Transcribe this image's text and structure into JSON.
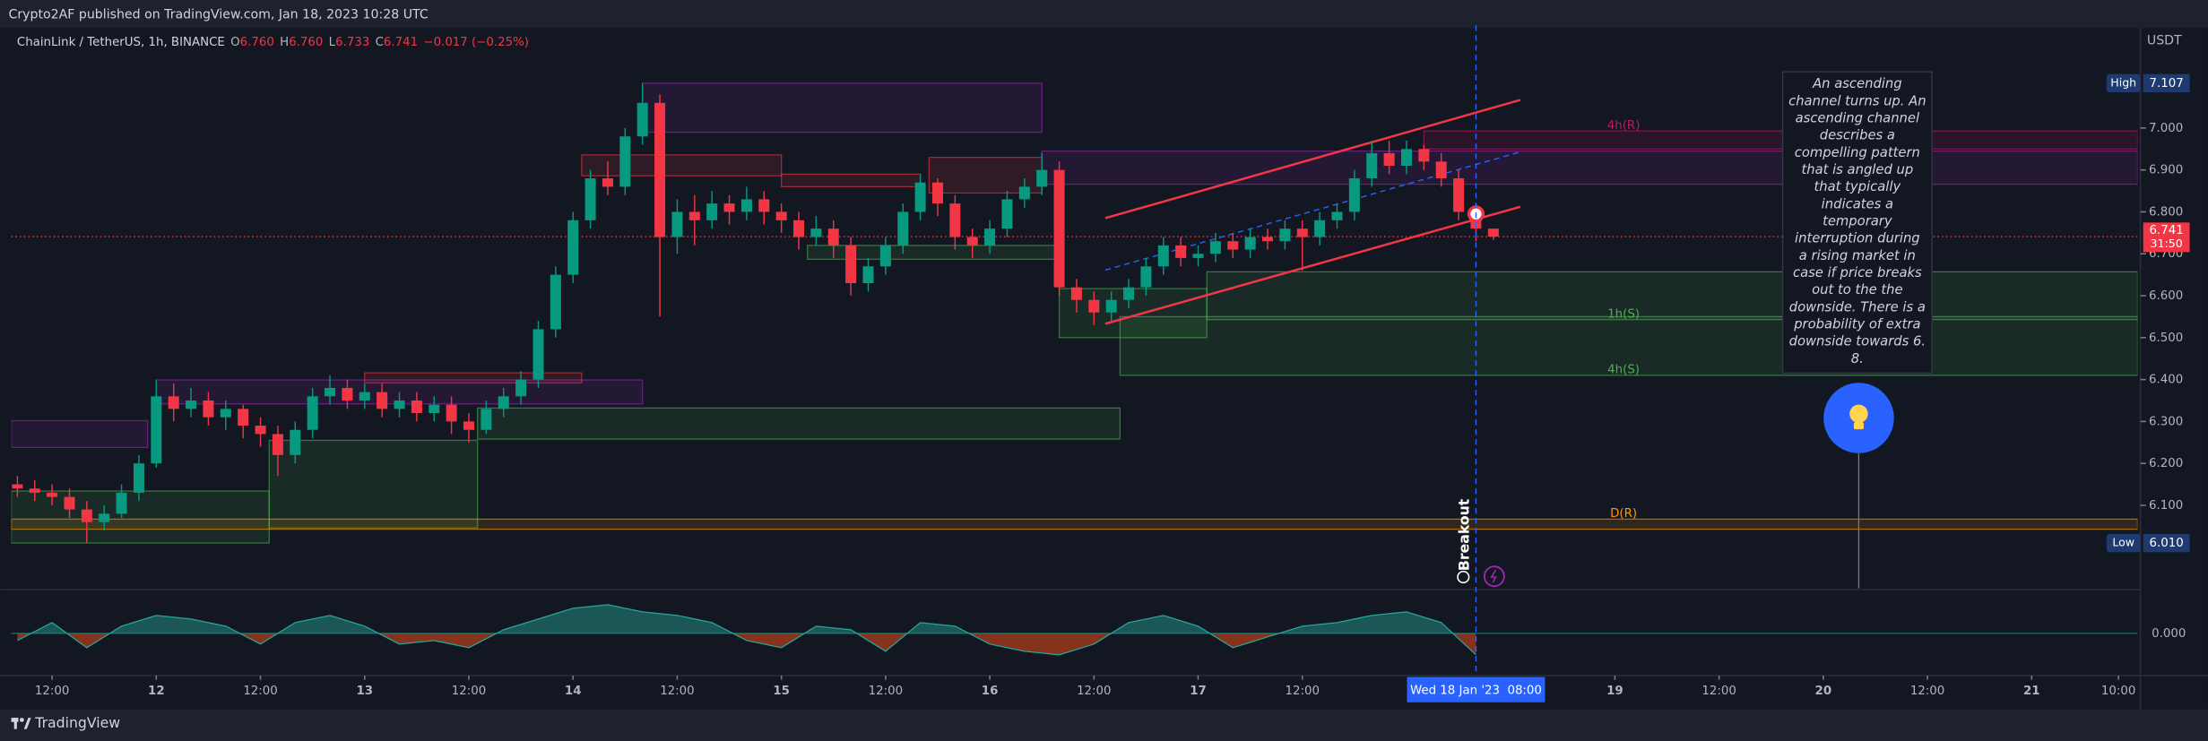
{
  "page": {
    "publisher": "Crypto2AF published on TradingView.com, Jan 18, 2023 10:28 UTC",
    "brand": "TradingView"
  },
  "chart_data": [
    {
      "type": "candlestick",
      "symbol": "ChainLink / TetherUS, 1h, BINANCE",
      "ohlc_labels": [
        {
          "key": "O",
          "value": "6.760"
        },
        {
          "key": "H",
          "value": "6.760"
        },
        {
          "key": "L",
          "value": "6.733"
        },
        {
          "key": "C",
          "value": "6.741"
        }
      ],
      "change": "−0.017 (−0.25%)",
      "y_unit": "USDT",
      "up_color": "#089981",
      "down_color": "#f23645",
      "x": [
        -16,
        -14,
        -12,
        -10,
        -8,
        -6,
        -4,
        -2,
        0,
        2,
        4,
        6,
        8,
        10,
        12,
        14,
        16,
        18,
        20,
        22,
        24,
        26,
        28,
        30,
        32,
        34,
        36,
        38,
        40,
        42,
        44,
        46,
        48,
        50,
        52,
        54,
        56,
        58,
        60,
        62,
        64,
        66,
        68,
        70,
        72,
        74,
        76,
        78,
        80,
        82,
        84,
        86,
        88,
        90,
        92,
        94,
        96,
        98,
        100,
        102,
        104,
        106,
        108,
        110,
        112,
        114,
        116,
        118,
        120,
        122,
        124,
        126,
        128,
        130,
        132,
        134,
        136,
        138,
        140,
        142,
        144,
        146,
        148,
        150,
        152,
        154
      ],
      "open": [
        6.15,
        6.14,
        6.13,
        6.12,
        6.09,
        6.06,
        6.08,
        6.13,
        6.2,
        6.36,
        6.33,
        6.35,
        6.31,
        6.33,
        6.29,
        6.27,
        6.22,
        6.28,
        6.36,
        6.38,
        6.35,
        6.37,
        6.33,
        6.35,
        6.32,
        6.34,
        6.3,
        6.28,
        6.33,
        6.36,
        6.4,
        6.52,
        6.65,
        6.78,
        6.88,
        6.86,
        6.98,
        7.06,
        6.74,
        6.8,
        6.78,
        6.82,
        6.8,
        6.83,
        6.8,
        6.78,
        6.74,
        6.76,
        6.72,
        6.63,
        6.67,
        6.72,
        6.8,
        6.87,
        6.82,
        6.74,
        6.72,
        6.76,
        6.83,
        6.86,
        6.9,
        6.62,
        6.59,
        6.56,
        6.59,
        6.62,
        6.67,
        6.72,
        6.69,
        6.7,
        6.73,
        6.71,
        6.74,
        6.73,
        6.76,
        6.74,
        6.78,
        6.8,
        6.88,
        6.94,
        6.91,
        6.95,
        6.92,
        6.88,
        6.8,
        6.76
      ],
      "high": [
        6.17,
        6.16,
        6.15,
        6.14,
        6.11,
        6.1,
        6.15,
        6.22,
        6.4,
        6.39,
        6.38,
        6.37,
        6.35,
        6.34,
        6.31,
        6.29,
        6.3,
        6.38,
        6.41,
        6.4,
        6.39,
        6.39,
        6.37,
        6.37,
        6.36,
        6.36,
        6.32,
        6.35,
        6.38,
        6.42,
        6.54,
        6.67,
        6.8,
        6.9,
        6.92,
        7.0,
        7.107,
        7.08,
        6.83,
        6.84,
        6.85,
        6.84,
        6.86,
        6.85,
        6.82,
        6.8,
        6.79,
        6.78,
        6.74,
        6.69,
        6.74,
        6.82,
        6.89,
        6.88,
        6.84,
        6.76,
        6.78,
        6.85,
        6.88,
        6.94,
        6.92,
        6.64,
        6.61,
        6.61,
        6.64,
        6.69,
        6.74,
        6.74,
        6.72,
        6.75,
        6.75,
        6.76,
        6.76,
        6.78,
        6.78,
        6.8,
        6.82,
        6.9,
        6.97,
        6.97,
        6.97,
        6.96,
        6.94,
        6.9,
        6.82,
        6.76
      ],
      "low": [
        6.12,
        6.11,
        6.1,
        6.07,
        6.01,
        6.04,
        6.07,
        6.11,
        6.19,
        6.3,
        6.31,
        6.29,
        6.28,
        6.26,
        6.24,
        6.17,
        6.2,
        6.26,
        6.34,
        6.33,
        6.33,
        6.31,
        6.31,
        6.3,
        6.3,
        6.27,
        6.25,
        6.27,
        6.31,
        6.34,
        6.38,
        6.5,
        6.63,
        6.76,
        6.84,
        6.84,
        6.96,
        6.55,
        6.7,
        6.72,
        6.76,
        6.77,
        6.78,
        6.77,
        6.75,
        6.71,
        6.72,
        6.69,
        6.6,
        6.61,
        6.65,
        6.7,
        6.78,
        6.79,
        6.71,
        6.69,
        6.7,
        6.74,
        6.81,
        6.84,
        6.6,
        6.56,
        6.53,
        6.54,
        6.57,
        6.6,
        6.65,
        6.67,
        6.67,
        6.68,
        6.69,
        6.69,
        6.71,
        6.71,
        6.66,
        6.72,
        6.76,
        6.78,
        6.86,
        6.89,
        6.89,
        6.9,
        6.86,
        6.78,
        6.73,
        6.733
      ],
      "close": [
        6.14,
        6.13,
        6.12,
        6.09,
        6.06,
        6.08,
        6.13,
        6.2,
        6.36,
        6.33,
        6.35,
        6.31,
        6.33,
        6.29,
        6.27,
        6.22,
        6.28,
        6.36,
        6.38,
        6.35,
        6.37,
        6.33,
        6.35,
        6.32,
        6.34,
        6.3,
        6.28,
        6.33,
        6.36,
        6.4,
        6.52,
        6.65,
        6.78,
        6.88,
        6.86,
        6.98,
        7.06,
        6.74,
        6.8,
        6.78,
        6.82,
        6.8,
        6.83,
        6.8,
        6.78,
        6.74,
        6.76,
        6.72,
        6.63,
        6.67,
        6.72,
        6.8,
        6.87,
        6.82,
        6.74,
        6.72,
        6.76,
        6.83,
        6.86,
        6.9,
        6.62,
        6.59,
        6.56,
        6.59,
        6.62,
        6.67,
        6.72,
        6.69,
        6.7,
        6.73,
        6.71,
        6.74,
        6.73,
        6.76,
        6.74,
        6.78,
        6.8,
        6.88,
        6.94,
        6.91,
        6.95,
        6.92,
        6.88,
        6.8,
        6.76,
        6.741
      ],
      "xlim": [
        -16.7,
        228.2
      ],
      "xticks": [
        {
          "value": -12,
          "label": "12:00"
        },
        {
          "value": 0,
          "label": "12"
        },
        {
          "value": 12,
          "label": "12:00"
        },
        {
          "value": 24,
          "label": "13"
        },
        {
          "value": 36,
          "label": "12:00"
        },
        {
          "value": 48,
          "label": "14"
        },
        {
          "value": 60,
          "label": "12:00"
        },
        {
          "value": 72,
          "label": "15"
        },
        {
          "value": 84,
          "label": "12:00"
        },
        {
          "value": 96,
          "label": "16"
        },
        {
          "value": 108,
          "label": "12:00"
        },
        {
          "value": 120,
          "label": "17"
        },
        {
          "value": 132,
          "label": "12:00"
        },
        {
          "value": 168,
          "label": "19"
        },
        {
          "value": 180,
          "label": "12:00"
        },
        {
          "value": 192,
          "label": "20"
        },
        {
          "value": 204,
          "label": "12:00"
        },
        {
          "value": 216,
          "label": "21"
        },
        {
          "value": 226,
          "label": "10:00"
        }
      ],
      "ylim": [
        5.902,
        7.245
      ],
      "yticks": [
        {
          "value": 6.1,
          "label": "6.100"
        },
        {
          "value": 6.2,
          "label": "6.200"
        },
        {
          "value": 6.3,
          "label": "6.300"
        },
        {
          "value": 6.4,
          "label": "6.400"
        },
        {
          "value": 6.5,
          "label": "6.500"
        },
        {
          "value": 6.6,
          "label": "6.600"
        },
        {
          "value": 6.7,
          "label": "6.700"
        },
        {
          "value": 6.8,
          "label": "6.800"
        },
        {
          "value": 6.9,
          "label": "6.900"
        },
        {
          "value": 7.0,
          "label": "7.000"
        }
      ],
      "markers": [
        {
          "name": "High",
          "value": 7.107,
          "label": "7.107"
        },
        {
          "name": "Low",
          "value": 6.01,
          "label": "6.010"
        }
      ],
      "last_price": {
        "value": 6.741,
        "label": "6.741",
        "countdown": "31:50"
      },
      "crosshair": {
        "x": 152,
        "label": "Wed 18 Jan '23  08:00"
      },
      "zones": [
        {
          "h": [
            56,
            102
          ],
          "p": [
            6.99,
            7.107
          ],
          "color": "#9c27b0"
        },
        {
          "h": [
            49,
            72
          ],
          "p": [
            6.886,
            6.936
          ],
          "color": "#f23645"
        },
        {
          "h": [
            72,
            88
          ],
          "p": [
            6.86,
            6.89
          ],
          "color": "#f23645"
        },
        {
          "h": [
            89,
            102
          ],
          "p": [
            6.845,
            6.93
          ],
          "color": "#f23645"
        },
        {
          "h": [
            102,
            228.2
          ],
          "p": [
            6.866,
            6.945
          ],
          "color": "#9c27b0"
        },
        {
          "h": [
            146,
            228.2
          ],
          "p": [
            6.95,
            6.993
          ],
          "color": "#c2185b",
          "label": "4h(R)"
        },
        {
          "h": [
            75,
            103.6
          ],
          "p": [
            6.687,
            6.72
          ],
          "color": "#4caf50"
        },
        {
          "h": [
            121,
            228.2
          ],
          "p": [
            6.543,
            6.657
          ],
          "color": "#4caf50",
          "label": "1h(S)"
        },
        {
          "h": [
            111,
            228.2
          ],
          "p": [
            6.41,
            6.55
          ],
          "color": "#4caf50",
          "label": "4h(S)"
        },
        {
          "h": [
            104,
            121
          ],
          "p": [
            6.5,
            6.617
          ],
          "color": "#4caf50"
        },
        {
          "h": [
            -16.7,
            -1
          ],
          "p": [
            6.238,
            6.302
          ],
          "color": "#9c27b0"
        },
        {
          "h": [
            0,
            56
          ],
          "p": [
            6.342,
            6.399
          ],
          "color": "#9c27b0"
        },
        {
          "h": [
            24,
            49
          ],
          "p": [
            6.392,
            6.416
          ],
          "color": "#f23645"
        },
        {
          "h": [
            37,
            111
          ],
          "p": [
            6.258,
            6.332
          ],
          "color": "#4caf50"
        },
        {
          "h": [
            13,
            37
          ],
          "p": [
            6.046,
            6.255
          ],
          "color": "#4caf50"
        },
        {
          "h": [
            -16.7,
            13
          ],
          "p": [
            6.01,
            6.134
          ],
          "color": "#4caf50"
        },
        {
          "h": [
            -16.7,
            228.2
          ],
          "p": [
            6.043,
            6.067
          ],
          "color": "#ff9800",
          "label": "D(R)"
        }
      ],
      "trendlines": [
        {
          "h": [
            109.3,
            157.1
          ],
          "p": [
            6.785,
            7.067
          ],
          "color": "#f23645",
          "dashed": false
        },
        {
          "h": [
            109.3,
            157.1
          ],
          "p": [
            6.533,
            6.812
          ],
          "color": "#f23645",
          "dashed": false
        },
        {
          "h": [
            109.3,
            157.1
          ],
          "p": [
            6.661,
            6.943
          ],
          "color": "#2962ff",
          "dashed": true
        }
      ],
      "signal": {
        "x": 152,
        "value": 6.795
      },
      "event_label": "Breakout",
      "annotation": [
        "An ascending",
        "channel turns up. An",
        "ascending channel",
        "describes a",
        "compelling pattern",
        "that is angled up",
        "that typically",
        "indicates a",
        "temporary",
        "interruption during",
        "a rising market in",
        "case if price breaks",
        "out to the the",
        "downside. There is a",
        "probability of extra",
        "downside towards 6.",
        "8."
      ]
    },
    {
      "type": "area",
      "x": [
        -16,
        -12,
        -8,
        -4,
        0,
        4,
        8,
        12,
        16,
        20,
        24,
        28,
        32,
        36,
        40,
        44,
        48,
        52,
        56,
        60,
        64,
        68,
        72,
        76,
        80,
        84,
        88,
        92,
        96,
        100,
        104,
        108,
        112,
        116,
        120,
        124,
        128,
        132,
        136,
        140,
        144,
        148,
        152
      ],
      "values": [
        -0.2,
        0.3,
        -0.4,
        0.2,
        0.5,
        0.4,
        0.2,
        -0.3,
        0.3,
        0.5,
        0.2,
        -0.3,
        -0.2,
        -0.4,
        0.1,
        0.4,
        0.7,
        0.8,
        0.6,
        0.5,
        0.3,
        -0.2,
        -0.4,
        0.2,
        0.1,
        -0.5,
        0.3,
        0.2,
        -0.3,
        -0.5,
        -0.6,
        -0.3,
        0.3,
        0.5,
        0.2,
        -0.4,
        -0.1,
        0.2,
        0.3,
        0.5,
        0.6,
        0.3,
        -0.6
      ],
      "pos_color": "#26a69a",
      "neg_color": "#e64a19",
      "xlim": [
        -16.7,
        228.2
      ],
      "ylim": [
        -1.1,
        1.1
      ],
      "yticks": [
        {
          "value": 0,
          "label": "0.000"
        }
      ]
    }
  ]
}
